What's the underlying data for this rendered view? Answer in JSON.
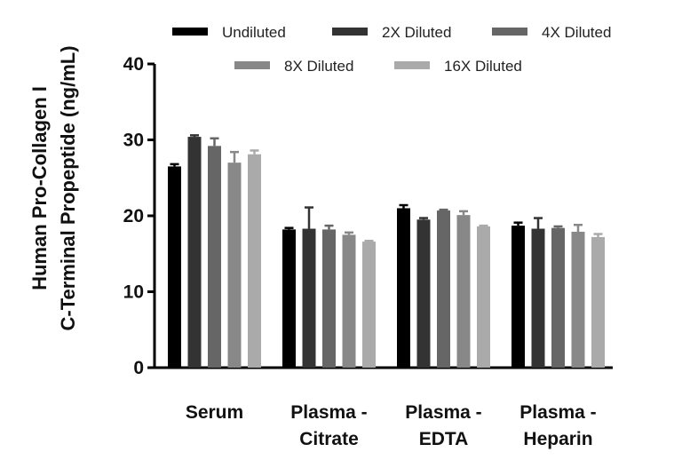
{
  "chart_data": {
    "type": "bar",
    "title": "",
    "xlabel": "",
    "ylabel_lines": [
      "Human Pro-Collagen I",
      "C-Terminal Propeptide (ng/mL)"
    ],
    "ylim": [
      0,
      40
    ],
    "yticks": [
      "0",
      "10",
      "20",
      "30",
      "40"
    ],
    "categories": [
      {
        "line1": "Serum",
        "line2": ""
      },
      {
        "line1": "Plasma -",
        "line2": "Citrate"
      },
      {
        "line1": "Plasma -",
        "line2": "EDTA"
      },
      {
        "line1": "Plasma -",
        "line2": "Heparin"
      }
    ],
    "legend_position": "top",
    "grid": false,
    "error_bars": true,
    "series": [
      {
        "name": "Undiluted",
        "color": "#000000",
        "values": [
          26.5,
          18.2,
          21.0,
          18.7
        ],
        "errors": [
          0.3,
          0.2,
          0.4,
          0.4
        ]
      },
      {
        "name": "2X Diluted",
        "color": "#333333",
        "values": [
          30.4,
          18.3,
          19.5,
          18.3
        ],
        "errors": [
          0.2,
          2.8,
          0.2,
          1.4
        ]
      },
      {
        "name": "4X Diluted",
        "color": "#666666",
        "values": [
          29.2,
          18.2,
          20.7,
          18.4
        ],
        "errors": [
          1.0,
          0.5,
          0.1,
          0.2
        ]
      },
      {
        "name": "8X Diluted",
        "color": "#888888",
        "values": [
          27.0,
          17.5,
          20.1,
          17.9
        ],
        "errors": [
          1.4,
          0.3,
          0.5,
          0.9
        ]
      },
      {
        "name": "16X Diluted",
        "color": "#aaaaaa",
        "values": [
          28.1,
          16.6,
          18.6,
          17.2
        ],
        "errors": [
          0.5,
          0.1,
          0.1,
          0.4
        ]
      }
    ]
  }
}
